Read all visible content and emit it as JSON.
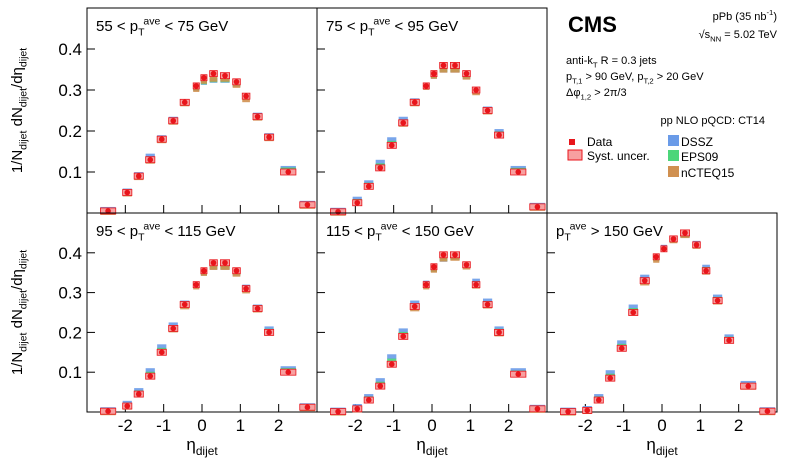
{
  "annotations": {
    "experiment": "CMS",
    "lumi": "pPb (35 nb^{-1})",
    "energy": "√s_{NN} = 5.02 TeV",
    "jets": "anti-k_{T} R = 0.3 jets",
    "cuts": "p_{T,1} > 90 GeV, p_{T,2} > 20 GeV",
    "dphi": "Δφ_{1,2} > 2π/3",
    "theory": "pp NLO pQCD: CT14",
    "syst": "Syst. uncer."
  },
  "chart_data": [
    {
      "type": "scatter",
      "title": "55 < p_{T}^{ave} < 75 GeV",
      "ylabel": "1/N_{dijet} dN_{dijet}/dη_{dijet}",
      "x": [
        -2.45,
        -1.95,
        -1.65,
        -1.35,
        -1.05,
        -0.75,
        -0.45,
        -0.15,
        0.05,
        0.3,
        0.6,
        0.9,
        1.15,
        1.45,
        1.75,
        2.25,
        2.75
      ],
      "xlim": [
        -3,
        3
      ],
      "ylim": [
        0,
        0.5
      ],
      "xticks": [
        -2,
        -1,
        0,
        1,
        2
      ],
      "yticks": [
        0.1,
        0.2,
        0.3,
        0.4
      ],
      "series": [
        {
          "name": "DSSZ",
          "color": "#6a9be8",
          "values": [
            0.005,
            0.05,
            0.09,
            0.135,
            0.18,
            0.225,
            0.265,
            0.3,
            0.315,
            0.32,
            0.32,
            0.31,
            0.28,
            0.235,
            0.185,
            0.105,
            0.02
          ]
        },
        {
          "name": "EPS09",
          "color": "#4cd67a",
          "values": [
            0.005,
            0.05,
            0.09,
            0.13,
            0.18,
            0.225,
            0.27,
            0.305,
            0.32,
            0.325,
            0.325,
            0.315,
            0.285,
            0.235,
            0.185,
            0.105,
            0.02
          ]
        },
        {
          "name": "nCTEQ15",
          "color": "#d09050",
          "values": [
            0.005,
            0.05,
            0.09,
            0.13,
            0.18,
            0.225,
            0.27,
            0.305,
            0.325,
            0.33,
            0.33,
            0.315,
            0.28,
            0.235,
            0.185,
            0.105,
            0.02
          ]
        },
        {
          "name": "Data",
          "color": "#e8151b",
          "values": [
            0.005,
            0.05,
            0.09,
            0.13,
            0.18,
            0.225,
            0.27,
            0.31,
            0.33,
            0.34,
            0.335,
            0.32,
            0.285,
            0.235,
            0.185,
            0.1,
            0.02
          ]
        }
      ]
    },
    {
      "type": "scatter",
      "title": "75 < p_{T}^{ave} < 95 GeV",
      "x": [
        -2.45,
        -1.95,
        -1.65,
        -1.35,
        -1.05,
        -0.75,
        -0.45,
        -0.15,
        0.05,
        0.3,
        0.6,
        0.9,
        1.15,
        1.45,
        1.75,
        2.25,
        2.75
      ],
      "xlim": [
        -3,
        3
      ],
      "ylim": [
        0,
        0.5
      ],
      "xticks": [
        -2,
        -1,
        0,
        1,
        2
      ],
      "yticks": [
        0.1,
        0.2,
        0.3,
        0.4
      ],
      "series": [
        {
          "color": "#6a9be8",
          "values": [
            0.003,
            0.03,
            0.07,
            0.12,
            0.175,
            0.225,
            0.27,
            0.305,
            0.33,
            0.345,
            0.345,
            0.33,
            0.295,
            0.25,
            0.195,
            0.105,
            0.015
          ]
        },
        {
          "color": "#4cd67a",
          "values": [
            0.003,
            0.028,
            0.068,
            0.115,
            0.17,
            0.222,
            0.27,
            0.308,
            0.335,
            0.35,
            0.35,
            0.335,
            0.298,
            0.25,
            0.193,
            0.104,
            0.015
          ]
        },
        {
          "color": "#d09050",
          "values": [
            0.003,
            0.027,
            0.067,
            0.113,
            0.168,
            0.22,
            0.27,
            0.31,
            0.337,
            0.352,
            0.352,
            0.335,
            0.297,
            0.25,
            0.192,
            0.103,
            0.015
          ]
        },
        {
          "color": "#e8151b",
          "values": [
            0.003,
            0.025,
            0.065,
            0.11,
            0.165,
            0.22,
            0.27,
            0.31,
            0.34,
            0.36,
            0.36,
            0.34,
            0.3,
            0.25,
            0.19,
            0.1,
            0.015
          ]
        }
      ]
    },
    {
      "type": "scatter",
      "title": "95 < p_{T}^{ave} < 115 GeV",
      "ylabel": "1/N_{dijet} dN_{dijet}/dη_{dijet}",
      "xlabel": "η_{dijet}",
      "x": [
        -2.45,
        -1.95,
        -1.65,
        -1.35,
        -1.05,
        -0.75,
        -0.45,
        -0.15,
        0.05,
        0.3,
        0.6,
        0.9,
        1.15,
        1.45,
        1.75,
        2.25,
        2.75
      ],
      "xlim": [
        -3,
        3
      ],
      "ylim": [
        0,
        0.5
      ],
      "xticks": [
        -2,
        -1,
        0,
        1,
        2
      ],
      "yticks": [
        0.1,
        0.2,
        0.3,
        0.4
      ],
      "series": [
        {
          "color": "#6a9be8",
          "values": [
            0.002,
            0.018,
            0.05,
            0.1,
            0.16,
            0.215,
            0.27,
            0.315,
            0.345,
            0.36,
            0.36,
            0.345,
            0.31,
            0.26,
            0.205,
            0.105,
            0.012
          ]
        },
        {
          "color": "#4cd67a",
          "values": [
            0.002,
            0.017,
            0.048,
            0.095,
            0.155,
            0.212,
            0.27,
            0.318,
            0.35,
            0.365,
            0.365,
            0.35,
            0.31,
            0.262,
            0.203,
            0.104,
            0.012
          ]
        },
        {
          "color": "#d09050",
          "values": [
            0.002,
            0.016,
            0.047,
            0.093,
            0.153,
            0.21,
            0.268,
            0.318,
            0.352,
            0.367,
            0.367,
            0.35,
            0.308,
            0.26,
            0.202,
            0.103,
            0.012
          ]
        },
        {
          "color": "#e8151b",
          "values": [
            0.002,
            0.015,
            0.045,
            0.09,
            0.15,
            0.21,
            0.27,
            0.32,
            0.355,
            0.375,
            0.375,
            0.355,
            0.31,
            0.26,
            0.2,
            0.1,
            0.012
          ]
        }
      ]
    },
    {
      "type": "scatter",
      "title": "115 < p_{T}^{ave} < 150 GeV",
      "xlabel": "η_{dijet}",
      "x": [
        -2.45,
        -1.95,
        -1.65,
        -1.35,
        -1.05,
        -0.75,
        -0.45,
        -0.15,
        0.05,
        0.3,
        0.6,
        0.9,
        1.15,
        1.45,
        1.75,
        2.25,
        2.75
      ],
      "xlim": [
        -3,
        3
      ],
      "ylim": [
        0,
        0.5
      ],
      "xticks": [
        -2,
        -1,
        0,
        1,
        2
      ],
      "yticks": [
        0.1,
        0.2,
        0.3,
        0.4
      ],
      "series": [
        {
          "color": "#6a9be8",
          "values": [
            0.001,
            0.01,
            0.035,
            0.075,
            0.135,
            0.2,
            0.27,
            0.32,
            0.355,
            0.38,
            0.385,
            0.365,
            0.325,
            0.275,
            0.205,
            0.1,
            0.008
          ]
        },
        {
          "color": "#4cd67a",
          "values": [
            0.001,
            0.009,
            0.033,
            0.07,
            0.128,
            0.195,
            0.265,
            0.318,
            0.358,
            0.385,
            0.388,
            0.368,
            0.322,
            0.272,
            0.203,
            0.098,
            0.008
          ]
        },
        {
          "color": "#d09050",
          "values": [
            0.001,
            0.009,
            0.032,
            0.068,
            0.125,
            0.193,
            0.263,
            0.318,
            0.36,
            0.388,
            0.39,
            0.368,
            0.32,
            0.27,
            0.2,
            0.097,
            0.008
          ]
        },
        {
          "color": "#e8151b",
          "values": [
            0.001,
            0.008,
            0.03,
            0.065,
            0.12,
            0.19,
            0.265,
            0.32,
            0.365,
            0.395,
            0.395,
            0.37,
            0.32,
            0.27,
            0.2,
            0.095,
            0.008
          ]
        }
      ]
    },
    {
      "type": "scatter",
      "title": "p_{T}^{ave} > 150 GeV",
      "xlabel": "η_{dijet}",
      "x": [
        -2.45,
        -1.95,
        -1.65,
        -1.35,
        -1.05,
        -0.75,
        -0.45,
        -0.15,
        0.05,
        0.3,
        0.6,
        0.9,
        1.15,
        1.45,
        1.75,
        2.25,
        2.75
      ],
      "xlim": [
        -3,
        3
      ],
      "ylim": [
        0,
        0.5
      ],
      "xticks": [
        -2,
        -1,
        0,
        1,
        2
      ],
      "yticks": [
        0.1,
        0.2,
        0.3,
        0.4
      ],
      "series": [
        {
          "color": "#6a9be8",
          "values": [
            0.001,
            0.005,
            0.035,
            0.095,
            0.17,
            0.26,
            0.335,
            0.385,
            0.41,
            0.43,
            0.44,
            0.42,
            0.36,
            0.285,
            0.185,
            0.068,
            0.002
          ]
        },
        {
          "color": "#4cd67a",
          "values": [
            0.001,
            0.005,
            0.033,
            0.09,
            0.165,
            0.255,
            0.33,
            0.385,
            0.412,
            0.432,
            0.445,
            0.42,
            0.358,
            0.283,
            0.183,
            0.067,
            0.002
          ]
        },
        {
          "color": "#d09050",
          "values": [
            0.001,
            0.005,
            0.032,
            0.088,
            0.163,
            0.252,
            0.328,
            0.385,
            0.413,
            0.434,
            0.447,
            0.42,
            0.355,
            0.28,
            0.182,
            0.066,
            0.002
          ]
        },
        {
          "color": "#e8151b",
          "values": [
            0.001,
            0.004,
            0.03,
            0.085,
            0.16,
            0.25,
            0.33,
            0.39,
            0.41,
            0.435,
            0.45,
            0.42,
            0.355,
            0.28,
            0.18,
            0.065,
            0.002
          ]
        }
      ]
    }
  ]
}
